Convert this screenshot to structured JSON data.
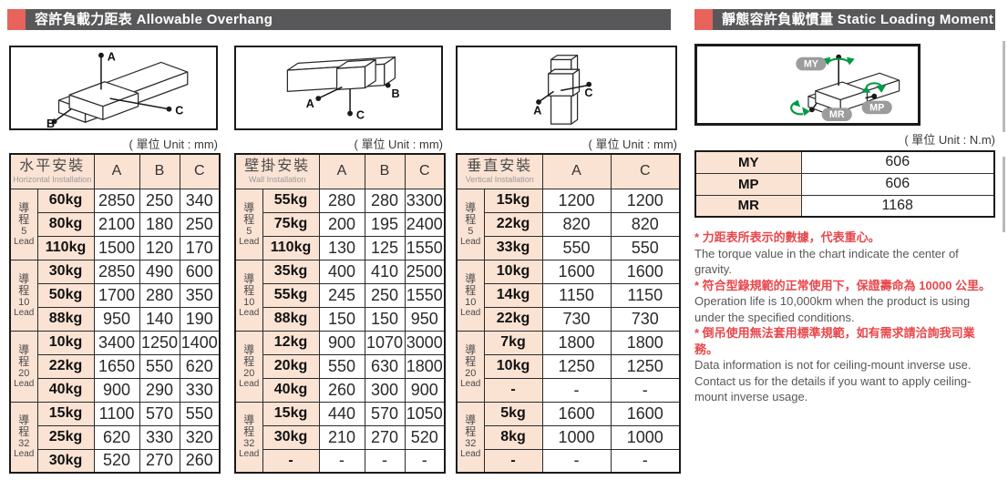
{
  "page": {
    "left_header": "容許負載力距表 Allowable Overhang",
    "right_header": "靜態容許負載慣量 Static Loading Moment",
    "unit_mm": "( 單位 Unit : mm)",
    "unit_nm": "( 單位 Unit : N.m)",
    "accent_color": "#e8635c",
    "header_bar_color": "#58585a",
    "table_header_color": "#fbe3d4",
    "note_red_color": "#e8474b",
    "moment_arrow_color": "#009a44"
  },
  "diagrams": {
    "horizontal": {
      "labels": {
        "a": "A",
        "b": "B",
        "c": "C"
      }
    },
    "wall": {
      "labels": {
        "a": "A",
        "b": "B",
        "c": "C"
      }
    },
    "vertical": {
      "labels": {
        "a": "A",
        "c": "C"
      }
    },
    "moment": {
      "labels": {
        "my": "MY",
        "mp": "MP",
        "mr": "MR"
      }
    }
  },
  "tables": [
    {
      "title_zh": "水平安裝",
      "title_en": "Horizontal Installation",
      "columns": [
        "A",
        "B",
        "C"
      ],
      "groups": [
        {
          "lead_zh": "導程",
          "lead_num": "5",
          "lead_en": "Lead",
          "rows": [
            [
              "60kg",
              "2850",
              "250",
              "340"
            ],
            [
              "80kg",
              "2100",
              "180",
              "250"
            ],
            [
              "110kg",
              "1500",
              "120",
              "170"
            ]
          ]
        },
        {
          "lead_zh": "導程",
          "lead_num": "10",
          "lead_en": "Lead",
          "rows": [
            [
              "30kg",
              "2850",
              "490",
              "600"
            ],
            [
              "50kg",
              "1700",
              "280",
              "350"
            ],
            [
              "88kg",
              "950",
              "140",
              "190"
            ]
          ]
        },
        {
          "lead_zh": "導程",
          "lead_num": "20",
          "lead_en": "Lead",
          "rows": [
            [
              "10kg",
              "3400",
              "1250",
              "1400"
            ],
            [
              "22kg",
              "1650",
              "550",
              "620"
            ],
            [
              "40kg",
              "900",
              "290",
              "330"
            ]
          ]
        },
        {
          "lead_zh": "導程",
          "lead_num": "32",
          "lead_en": "Lead",
          "rows": [
            [
              "15kg",
              "1100",
              "570",
              "550"
            ],
            [
              "25kg",
              "620",
              "330",
              "320"
            ],
            [
              "30kg",
              "520",
              "270",
              "260"
            ]
          ]
        }
      ]
    },
    {
      "title_zh": "壁掛安裝",
      "title_en": "Wall Installation",
      "columns": [
        "A",
        "B",
        "C"
      ],
      "groups": [
        {
          "lead_zh": "導程",
          "lead_num": "5",
          "lead_en": "Lead",
          "rows": [
            [
              "55kg",
              "280",
              "280",
              "3300"
            ],
            [
              "75kg",
              "200",
              "195",
              "2400"
            ],
            [
              "110kg",
              "130",
              "125",
              "1550"
            ]
          ]
        },
        {
          "lead_zh": "導程",
          "lead_num": "10",
          "lead_en": "Lead",
          "rows": [
            [
              "35kg",
              "400",
              "410",
              "2500"
            ],
            [
              "55kg",
              "245",
              "250",
              "1550"
            ],
            [
              "88kg",
              "150",
              "150",
              "950"
            ]
          ]
        },
        {
          "lead_zh": "導程",
          "lead_num": "20",
          "lead_en": "Lead",
          "rows": [
            [
              "12kg",
              "900",
              "1070",
              "3000"
            ],
            [
              "20kg",
              "550",
              "630",
              "1800"
            ],
            [
              "40kg",
              "260",
              "300",
              "900"
            ]
          ]
        },
        {
          "lead_zh": "導程",
          "lead_num": "32",
          "lead_en": "Lead",
          "rows": [
            [
              "15kg",
              "440",
              "570",
              "1050"
            ],
            [
              "30kg",
              "210",
              "270",
              "520"
            ],
            [
              "-",
              "-",
              "-",
              "-"
            ]
          ]
        }
      ]
    },
    {
      "title_zh": "垂直安裝",
      "title_en": "Vertical Installation",
      "columns": [
        "A",
        "C"
      ],
      "groups": [
        {
          "lead_zh": "導程",
          "lead_num": "5",
          "lead_en": "Lead",
          "rows": [
            [
              "15kg",
              "1200",
              "1200"
            ],
            [
              "22kg",
              "820",
              "820"
            ],
            [
              "33kg",
              "550",
              "550"
            ]
          ]
        },
        {
          "lead_zh": "導程",
          "lead_num": "10",
          "lead_en": "Lead",
          "rows": [
            [
              "10kg",
              "1600",
              "1600"
            ],
            [
              "14kg",
              "1150",
              "1150"
            ],
            [
              "22kg",
              "730",
              "730"
            ]
          ]
        },
        {
          "lead_zh": "導程",
          "lead_num": "20",
          "lead_en": "Lead",
          "rows": [
            [
              "7kg",
              "1800",
              "1800"
            ],
            [
              "10kg",
              "1250",
              "1250"
            ],
            [
              "-",
              "-",
              "-"
            ]
          ]
        },
        {
          "lead_zh": "導程",
          "lead_num": "32",
          "lead_en": "Lead",
          "rows": [
            [
              "5kg",
              "1600",
              "1600"
            ],
            [
              "8kg",
              "1000",
              "1000"
            ],
            [
              "-",
              "-",
              "-"
            ]
          ]
        }
      ]
    }
  ],
  "moment_table": {
    "rows": [
      {
        "label": "MY",
        "value": "606"
      },
      {
        "label": "MP",
        "value": "606"
      },
      {
        "label": "MR",
        "value": "1168"
      }
    ]
  },
  "notes": [
    {
      "zh": "* 力距表所表示的數據，代表重心。",
      "en": "The torque value in the chart indicate the center of gravity."
    },
    {
      "zh": "* 符合型錄規範的正常使用下，保證壽命為 10000 公里。",
      "en": "Operation life is 10,000km when the product is using under the specified conditions."
    },
    {
      "zh": "* 倒吊使用無法套用標準規範，如有需求請洽詢我司業務。",
      "en": "Data information is not for ceiling-mount inverse use.",
      "en2": "Contact us for the details if you want to apply ceiling-mount inverse usage."
    }
  ]
}
